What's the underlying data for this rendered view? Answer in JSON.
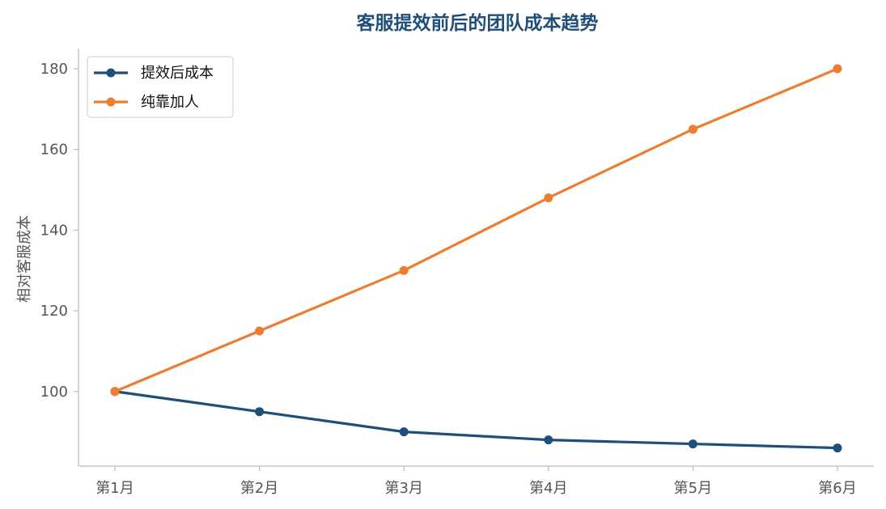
{
  "chart_data": {
    "type": "line",
    "title": "客服提效前后的团队成本趋势",
    "xlabel": "",
    "ylabel": "相对客服成本",
    "categories": [
      "第1月",
      "第2月",
      "第3月",
      "第4月",
      "第5月",
      "第6月"
    ],
    "ylim": [
      81.5,
      185
    ],
    "yticks": [
      100,
      120,
      140,
      160,
      180
    ],
    "grid": false,
    "legend_position": "top-left",
    "series": [
      {
        "name": "提效后成本",
        "color": "#1f4e79",
        "values": [
          100,
          95,
          90,
          88,
          87,
          86
        ]
      },
      {
        "name": "纯靠加人",
        "color": "#ed7d31",
        "values": [
          100,
          115,
          130,
          148,
          165,
          180
        ]
      }
    ]
  }
}
